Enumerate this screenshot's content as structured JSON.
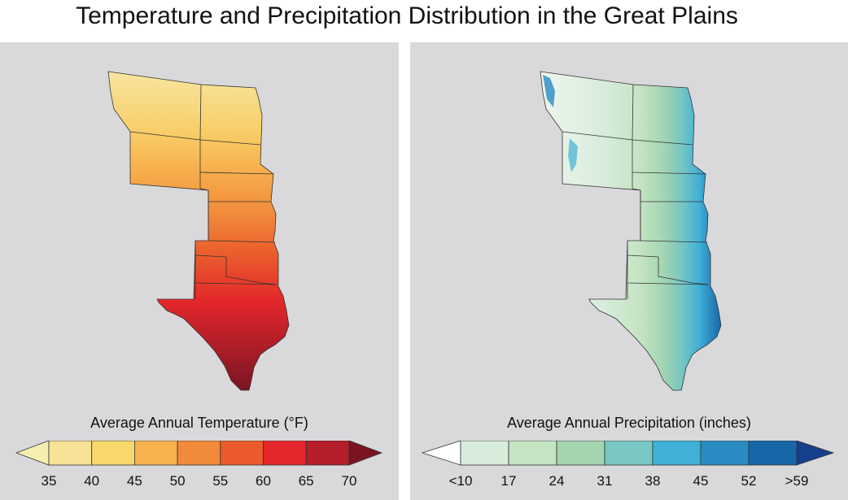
{
  "title": "Temperature and Precipitation Distribution in the Great Plains",
  "temperature": {
    "legend_title": "Average Annual Temperature (°F)",
    "ticks": [
      "35",
      "40",
      "45",
      "50",
      "55",
      "60",
      "65",
      "70"
    ],
    "colors": [
      "#f6eeb0",
      "#f8e298",
      "#f8d76c",
      "#f7b24e",
      "#f18a3a",
      "#ea5a2c",
      "#e3272a",
      "#b31e29",
      "#7a1422"
    ]
  },
  "precipitation": {
    "legend_title": "Average Annual Precipitation (inches)",
    "ticks": [
      "<10",
      "17",
      "24",
      "31",
      "38",
      "45",
      "52",
      ">59"
    ],
    "colors": [
      "#ffffff",
      "#d7ecdb",
      "#c5e4c3",
      "#a3d5b1",
      "#78c7c2",
      "#3fb0d6",
      "#2a8bc3",
      "#1766a8",
      "#163f8c"
    ]
  }
}
